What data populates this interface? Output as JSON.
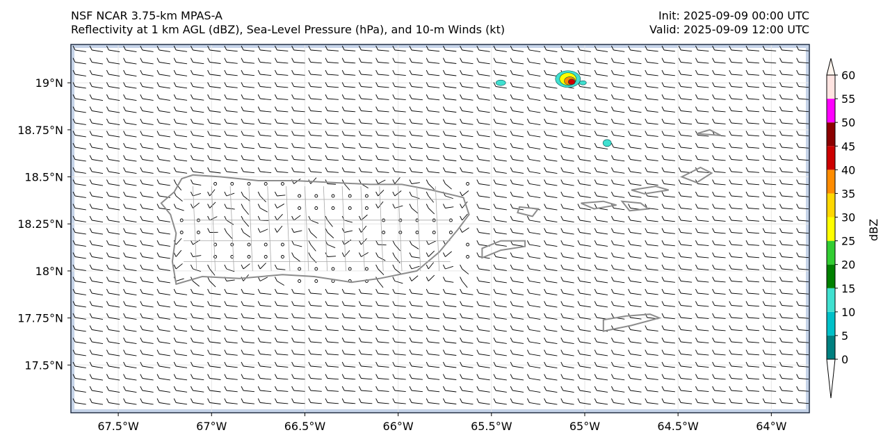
{
  "header": {
    "model": "NSF NCAR 3.75-km MPAS-A",
    "fields": "Reflectivity at 1 km AGL (dBZ), Sea-Level Pressure (hPa), and 10-m Winds (kt)",
    "init": "Init: 2025-09-09 00:00 UTC",
    "valid": "Valid: 2025-09-09 12:00 UTC"
  },
  "map": {
    "lon_range": [
      -67.75,
      -63.8
    ],
    "lat_range": [
      17.25,
      19.2
    ],
    "lon_ticks": [
      {
        "value": -67.5,
        "label": "67.5°W"
      },
      {
        "value": -67.0,
        "label": "67°W"
      },
      {
        "value": -66.5,
        "label": "66.5°W"
      },
      {
        "value": -66.0,
        "label": "66°W"
      },
      {
        "value": -65.5,
        "label": "65.5°W"
      },
      {
        "value": -65.0,
        "label": "65°W"
      },
      {
        "value": -64.5,
        "label": "64.5°W"
      },
      {
        "value": -64.0,
        "label": "64°W"
      }
    ],
    "lat_ticks": [
      {
        "value": 19.0,
        "label": "19°N"
      },
      {
        "value": 18.75,
        "label": "18.75°N"
      },
      {
        "value": 18.5,
        "label": "18.5°N"
      },
      {
        "value": 18.25,
        "label": "18.25°N"
      },
      {
        "value": 18.0,
        "label": "18°N"
      },
      {
        "value": 17.75,
        "label": "17.75°N"
      },
      {
        "value": 17.5,
        "label": "17.5°N"
      }
    ],
    "coast_color": "#8c8c8c",
    "barb_color": "#000000"
  },
  "colorbar": {
    "label": "dBZ",
    "levels": [
      0,
      5,
      10,
      15,
      20,
      25,
      30,
      35,
      40,
      45,
      50,
      55,
      60
    ],
    "colors": [
      "#008080",
      "#00c0c8",
      "#40e0d0",
      "#008000",
      "#32cd32",
      "#ffff00",
      "#ffd700",
      "#ff8c00",
      "#cc0000",
      "#8b0000",
      "#ff00ff",
      "#ffe4e1"
    ],
    "tick_labels": [
      "0",
      "5",
      "10",
      "15",
      "20",
      "25",
      "30",
      "35",
      "40",
      "45",
      "50",
      "55",
      "60"
    ]
  }
}
